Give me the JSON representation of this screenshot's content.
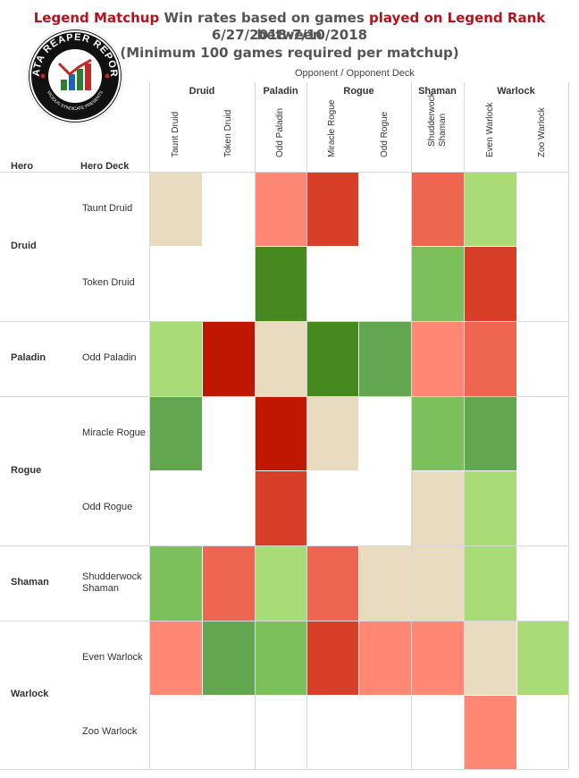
{
  "title": {
    "part1_red": "Legend Matchup",
    "part2": " Win rates based on games ",
    "part3_red": "played on Legend Rank",
    "part4": "  between",
    "line2": "6/27/2018-7/10/2018",
    "line3": "(Minimum 100 games required per matchup)"
  },
  "logo": {
    "line1": "DATA REAPER REPORT",
    "line2": "VICIOUS SYNDICATE PRESENTS"
  },
  "axis": {
    "opponent_label": "Opponent  /  Opponent Deck",
    "hero_label": "Hero",
    "hero_deck_label": "Hero Deck"
  },
  "colors": {
    "dark_red": "#bf1700",
    "red": "#d83f28",
    "orange_red": "#ef6650",
    "salmon": "#ff8875",
    "neutral": "#e8dbc0",
    "light_green": "#a9db77",
    "green": "#7cc05c",
    "mid_green": "#62a64f",
    "dark_green": "#46891f"
  },
  "chart_data": {
    "type": "heatmap",
    "title": "Legend Matchup Win rates based on games played on Legend Rank between 6/27/2018-7/10/2018",
    "subtitle": "(Minimum 100 games required per matchup)",
    "xlabel": "Opponent / Opponent Deck",
    "ylabel": "Hero / Hero Deck",
    "opponent_classes": [
      {
        "name": "Druid",
        "decks": [
          "Taunt Druid",
          "Token Druid"
        ]
      },
      {
        "name": "Paladin",
        "decks": [
          "Odd Paladin"
        ]
      },
      {
        "name": "Rogue",
        "decks": [
          "Miracle Rogue",
          "Odd Rogue"
        ]
      },
      {
        "name": "Shaman",
        "decks": [
          "Shudderwock Shaman"
        ]
      },
      {
        "name": "Warlock",
        "decks": [
          "Even Warlock",
          "Zoo Warlock"
        ]
      }
    ],
    "hero_classes": [
      {
        "name": "Druid",
        "decks": [
          "Taunt Druid",
          "Token Druid"
        ]
      },
      {
        "name": "Paladin",
        "decks": [
          "Odd Paladin"
        ]
      },
      {
        "name": "Rogue",
        "decks": [
          "Miracle Rogue",
          "Odd Rogue"
        ]
      },
      {
        "name": "Shaman",
        "decks": [
          "Shudderwock\nShaman"
        ]
      },
      {
        "name": "Warlock",
        "decks": [
          "Even Warlock",
          "Zoo Warlock"
        ]
      }
    ],
    "cells": [
      [
        "neutral",
        null,
        "salmon",
        "red",
        null,
        "orange_red",
        "light_green",
        null
      ],
      [
        null,
        null,
        "dark_green",
        null,
        null,
        "green",
        "red",
        null
      ],
      [
        "light_green",
        "dark_red",
        "neutral",
        "dark_green",
        "mid_green",
        "salmon",
        "orange_red",
        null
      ],
      [
        "mid_green",
        null,
        "dark_red",
        "neutral",
        null,
        "green",
        "mid_green",
        null
      ],
      [
        null,
        null,
        "red",
        null,
        null,
        "neutral",
        "light_green",
        null
      ],
      [
        "green",
        "orange_red",
        "light_green",
        "orange_red",
        "neutral",
        "neutral",
        "light_green",
        null
      ],
      [
        "salmon",
        "mid_green",
        "green",
        "red",
        "salmon",
        "salmon",
        "neutral",
        "light_green"
      ],
      [
        null,
        null,
        null,
        null,
        null,
        null,
        "salmon",
        null
      ]
    ],
    "legend": "none",
    "grid": true
  }
}
